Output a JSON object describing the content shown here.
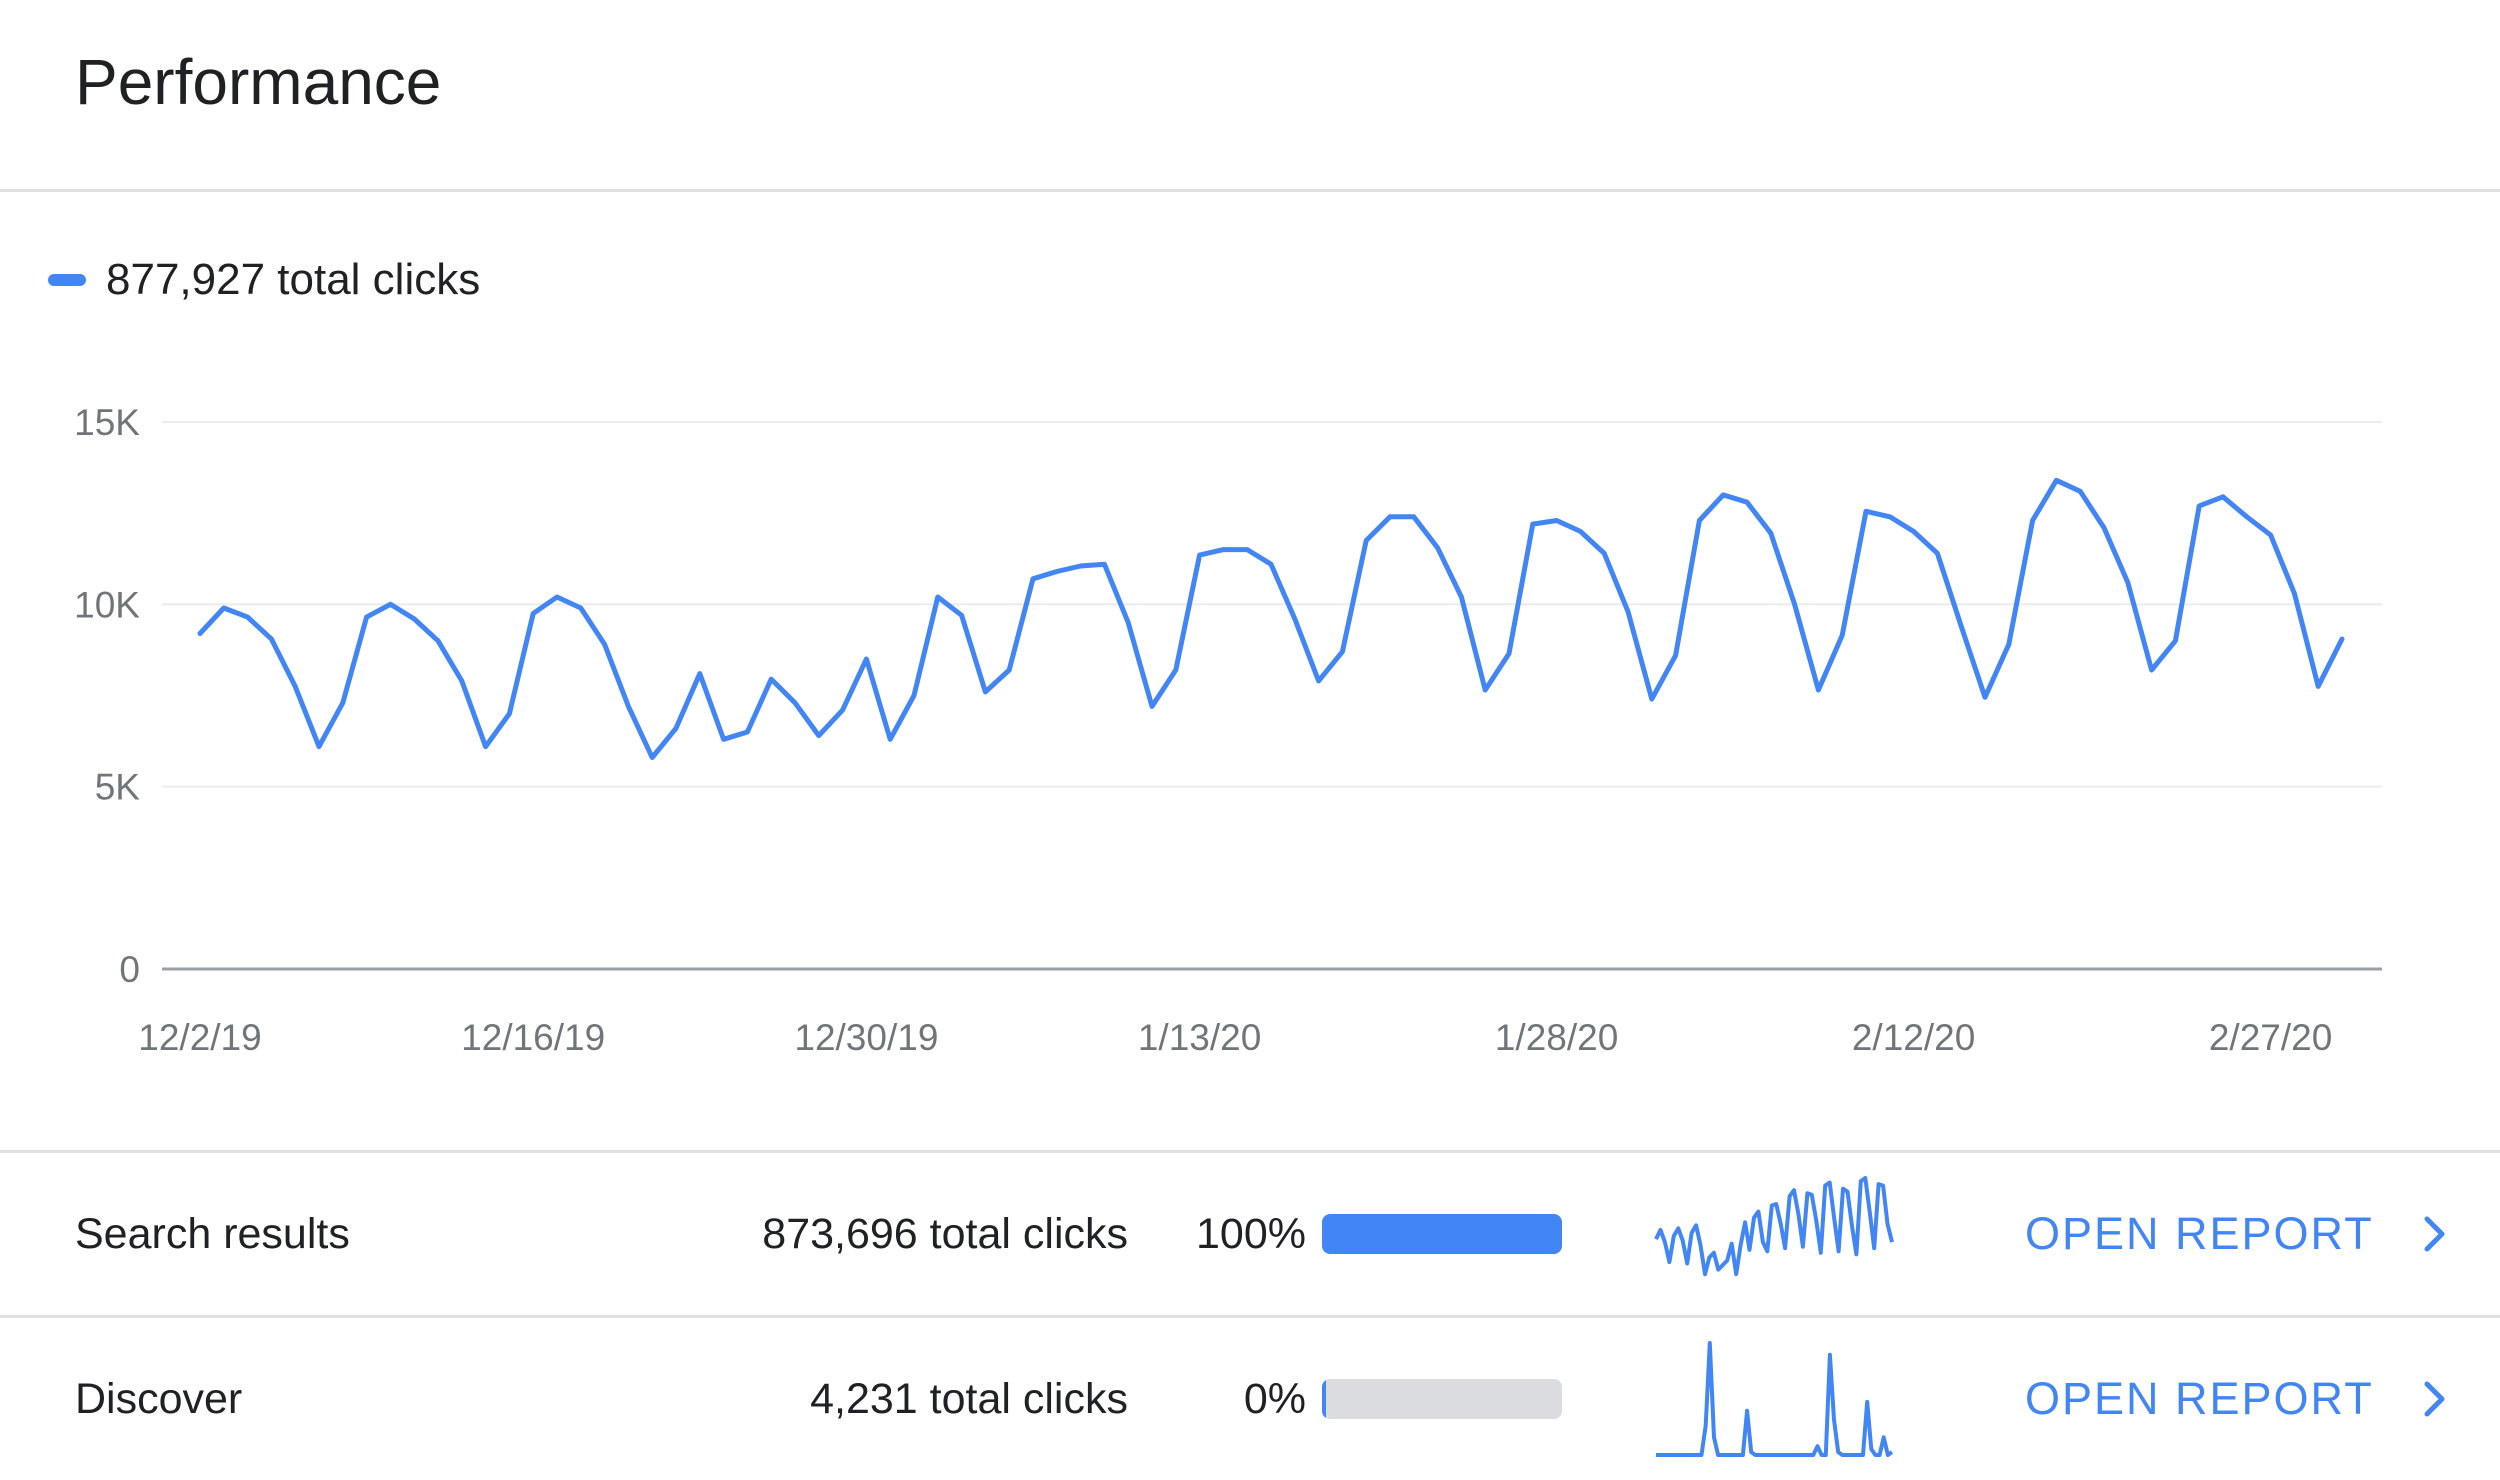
{
  "header": {
    "title": "Performance"
  },
  "legend": {
    "label": "877,927 total clicks",
    "color": "#4285f4"
  },
  "chart_data": {
    "type": "line",
    "title": "",
    "xlabel": "",
    "ylabel": "",
    "ylim": [
      0,
      15000
    ],
    "y_ticks": [
      {
        "value": 0,
        "label": "0"
      },
      {
        "value": 5000,
        "label": "5K"
      },
      {
        "value": 10000,
        "label": "10K"
      },
      {
        "value": 15000,
        "label": "15K"
      }
    ],
    "x_ticks": [
      {
        "date": "2019-12-02",
        "label": "12/2/19"
      },
      {
        "date": "2019-12-16",
        "label": "12/16/19"
      },
      {
        "date": "2019-12-30",
        "label": "12/30/19"
      },
      {
        "date": "2020-01-13",
        "label": "1/13/20"
      },
      {
        "date": "2020-01-28",
        "label": "1/28/20"
      },
      {
        "date": "2020-02-12",
        "label": "2/12/20"
      },
      {
        "date": "2020-02-27",
        "label": "2/27/20"
      }
    ],
    "x_start": "2019-12-02",
    "x_end": "2020-03-01",
    "grid": true,
    "legend_position": "top-left",
    "series": [
      {
        "name": "877,927 total clicks",
        "color": "#4285f4",
        "values": [
          9200,
          9900,
          9650,
          9050,
          7750,
          6100,
          7300,
          9650,
          10000,
          9600,
          9000,
          7900,
          6100,
          7000,
          9750,
          10200,
          9900,
          8900,
          7200,
          5800,
          6600,
          8100,
          6300,
          6500,
          7950,
          7300,
          6400,
          7100,
          8500,
          6300,
          7500,
          10200,
          9700,
          7600,
          8200,
          10700,
          10900,
          11050,
          11100,
          9500,
          7200,
          8200,
          11350,
          11500,
          11500,
          11100,
          9600,
          7900,
          8700,
          11750,
          12400,
          12400,
          11550,
          10200,
          7650,
          8650,
          12200,
          12300,
          12000,
          11400,
          9800,
          7400,
          8600,
          12300,
          13000,
          12800,
          11950,
          10000,
          7650,
          9150,
          12550,
          12400,
          12000,
          11400,
          9400,
          7450,
          8900,
          12300,
          13400,
          13100,
          12100,
          10600,
          8200,
          9000,
          12700,
          12950,
          12400,
          11900,
          10300,
          7750,
          9050
        ]
      }
    ]
  },
  "rows": [
    {
      "name": "Search results",
      "clicks": "873,696 total clicks",
      "pct_label": "100%",
      "share": 1.0,
      "bar_color": "#4285f4",
      "open_label": "OPEN REPORT",
      "spark_values": [
        9200,
        9800,
        9000,
        7700,
        9400,
        9900,
        9100,
        7600,
        9600,
        10100,
        8800,
        6900,
        8000,
        8300,
        7200,
        7500,
        7800,
        8900,
        6900,
        8800,
        10300,
        8500,
        10600,
        11000,
        9000,
        8400,
        11400,
        11500,
        10200,
        8600,
        12000,
        12400,
        10800,
        8700,
        12200,
        12100,
        10400,
        8300,
        12700,
        12900,
        10600,
        8400,
        12500,
        12300,
        10100,
        8200,
        13000,
        13200,
        11000,
        8600,
        12800,
        12700,
        10200,
        9000
      ]
    },
    {
      "name": "Discover",
      "clicks": "4,231 total clicks",
      "pct_label": "0%",
      "share": 0.005,
      "bar_color": "#4285f4",
      "open_label": "OPEN REPORT",
      "spark_values": [
        0,
        0,
        0,
        0,
        0,
        0,
        0,
        0,
        0,
        0,
        0,
        0,
        100,
        380,
        60,
        0,
        0,
        0,
        0,
        0,
        0,
        0,
        150,
        10,
        0,
        0,
        0,
        0,
        0,
        0,
        0,
        0,
        0,
        0,
        0,
        0,
        0,
        0,
        0,
        30,
        0,
        0,
        340,
        120,
        10,
        0,
        0,
        0,
        0,
        0,
        0,
        180,
        20,
        0,
        0,
        60,
        0,
        10
      ]
    }
  ]
}
